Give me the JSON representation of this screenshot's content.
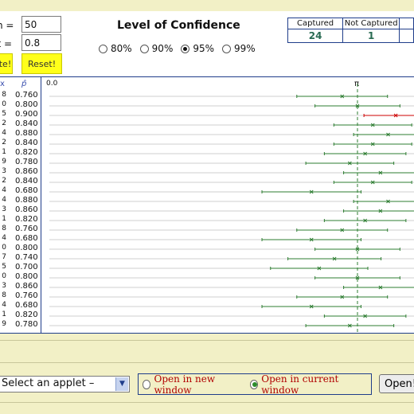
{
  "controls": {
    "n_label": "n =",
    "n_value": "50",
    "pi_label": "π =",
    "pi_value": "0.8",
    "simulate_label": "ate!",
    "reset_label": "Reset!"
  },
  "confidence": {
    "title": "Level of Confidence",
    "options": [
      {
        "label": "80%",
        "selected": false
      },
      {
        "label": "90%",
        "selected": false
      },
      {
        "label": "95%",
        "selected": true
      },
      {
        "label": "99%",
        "selected": false
      }
    ]
  },
  "summary": {
    "captured_label": "Captured",
    "captured_value": "24",
    "not_captured_label": "Not Captured",
    "not_captured_value": "1"
  },
  "results": {
    "col_x": "x",
    "col_p": "p̂",
    "axis_min": "0.0",
    "axis_pi": "π",
    "pi_value": 0.8,
    "captured_color": "#2e7d32",
    "missed_color": "#cc0000",
    "rows": [
      {
        "x": "8",
        "p": "0.760"
      },
      {
        "x": "0",
        "p": "0.800"
      },
      {
        "x": "5",
        "p": "0.900"
      },
      {
        "x": "2",
        "p": "0.840"
      },
      {
        "x": "4",
        "p": "0.880"
      },
      {
        "x": "2",
        "p": "0.840"
      },
      {
        "x": "1",
        "p": "0.820"
      },
      {
        "x": "9",
        "p": "0.780"
      },
      {
        "x": "3",
        "p": "0.860"
      },
      {
        "x": "2",
        "p": "0.840"
      },
      {
        "x": "4",
        "p": "0.680"
      },
      {
        "x": "4",
        "p": "0.880"
      },
      {
        "x": "3",
        "p": "0.860"
      },
      {
        "x": "1",
        "p": "0.820"
      },
      {
        "x": "8",
        "p": "0.760"
      },
      {
        "x": "4",
        "p": "0.680"
      },
      {
        "x": "0",
        "p": "0.800"
      },
      {
        "x": "7",
        "p": "0.740"
      },
      {
        "x": "5",
        "p": "0.700"
      },
      {
        "x": "0",
        "p": "0.800"
      },
      {
        "x": "3",
        "p": "0.860"
      },
      {
        "x": "8",
        "p": "0.760"
      },
      {
        "x": "4",
        "p": "0.680"
      },
      {
        "x": "1",
        "p": "0.820"
      },
      {
        "x": "9",
        "p": "0.780"
      }
    ]
  },
  "footer": {
    "select_value": "Select an applet –",
    "open_new_label": "Open in new window",
    "open_current_label": "Open in current window",
    "open_new_selected": false,
    "open_current_selected": true,
    "open_button_label": "Open!"
  }
}
